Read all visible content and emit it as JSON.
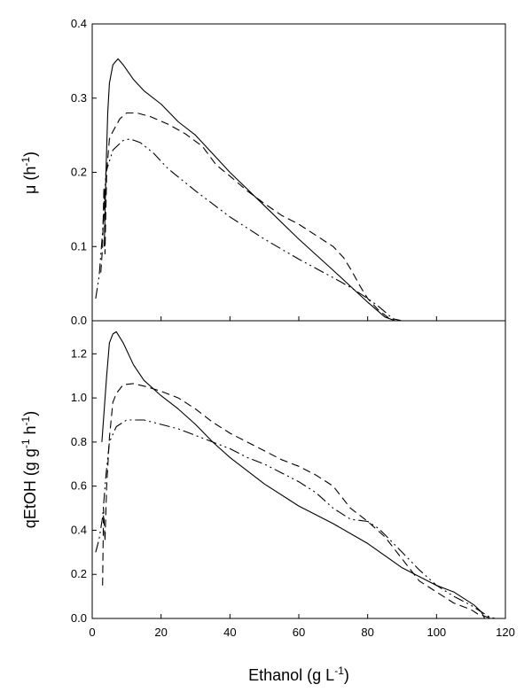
{
  "chart_data": [
    {
      "type": "line",
      "panel": "top",
      "ylabel": "μ (h-1)",
      "ylabel_parts": {
        "base": "μ (h",
        "sup": "-1",
        "close": ")"
      },
      "xlim": [
        0,
        120
      ],
      "ylim": [
        0,
        0.4
      ],
      "x_ticks": [],
      "y_ticks": [
        "0.0",
        "0.1",
        "0.2",
        "0.3",
        "0.4"
      ],
      "y_tick_values": [
        0,
        0.1,
        0.2,
        0.3,
        0.4
      ],
      "grid": false,
      "series": [
        {
          "style": "solid",
          "points": [
            [
              3.5,
              0.1
            ],
            [
              4,
              0.2
            ],
            [
              4.5,
              0.28
            ],
            [
              5,
              0.32
            ],
            [
              6,
              0.345
            ],
            [
              7.5,
              0.353
            ],
            [
              9,
              0.345
            ],
            [
              12,
              0.325
            ],
            [
              15,
              0.31
            ],
            [
              20,
              0.292
            ],
            [
              25,
              0.268
            ],
            [
              30,
              0.25
            ],
            [
              40,
              0.2
            ],
            [
              50,
              0.155
            ],
            [
              60,
              0.11
            ],
            [
              70,
              0.068
            ],
            [
              80,
              0.025
            ],
            [
              85,
              0.005
            ],
            [
              88,
              0
            ],
            [
              95,
              0
            ]
          ]
        },
        {
          "style": "dash",
          "points": [
            [
              2.5,
              0.065
            ],
            [
              3,
              0.1
            ],
            [
              3.4,
              0.18
            ],
            [
              3.7,
              0.09
            ],
            [
              4.2,
              0.2
            ],
            [
              5,
              0.245
            ],
            [
              6,
              0.255
            ],
            [
              8,
              0.272
            ],
            [
              10,
              0.28
            ],
            [
              13,
              0.28
            ],
            [
              17,
              0.275
            ],
            [
              22,
              0.265
            ],
            [
              27,
              0.252
            ],
            [
              32,
              0.235
            ],
            [
              36,
              0.21
            ],
            [
              40,
              0.195
            ],
            [
              45,
              0.175
            ],
            [
              50,
              0.158
            ],
            [
              55,
              0.142
            ],
            [
              60,
              0.13
            ],
            [
              65,
              0.115
            ],
            [
              70,
              0.1
            ],
            [
              73,
              0.085
            ],
            [
              75,
              0.07
            ],
            [
              78,
              0.045
            ],
            [
              80,
              0.03
            ],
            [
              83,
              0.015
            ],
            [
              86,
              0.004
            ],
            [
              90,
              0
            ],
            [
              95,
              0
            ]
          ]
        },
        {
          "style": "dash-dot-dot",
          "points": [
            [
              1,
              0.03
            ],
            [
              2,
              0.06
            ],
            [
              3,
              0.12
            ],
            [
              4,
              0.2
            ],
            [
              6,
              0.23
            ],
            [
              9,
              0.243
            ],
            [
              11,
              0.245
            ],
            [
              14,
              0.24
            ],
            [
              18,
              0.225
            ],
            [
              22,
              0.205
            ],
            [
              30,
              0.175
            ],
            [
              40,
              0.14
            ],
            [
              50,
              0.11
            ],
            [
              60,
              0.083
            ],
            [
              70,
              0.058
            ],
            [
              75,
              0.045
            ],
            [
              80,
              0.03
            ],
            [
              83,
              0.02
            ],
            [
              85,
              0.012
            ],
            [
              87,
              0.004
            ],
            [
              88,
              0
            ]
          ]
        }
      ]
    },
    {
      "type": "line",
      "panel": "bottom",
      "xlabel": "Ethanol (g L-1)",
      "xlabel_parts": {
        "base": "Ethanol (g L",
        "sup": "-1",
        "close": ")"
      },
      "ylabel": "qEtOH (g g-1 h-1)",
      "ylabel_parts": {
        "base": "qEtOH (g g",
        "sup1": "-1",
        "mid": " h",
        "sup2": "-1",
        "close": ")"
      },
      "xlim": [
        0,
        120
      ],
      "ylim": [
        0,
        1.35
      ],
      "x_ticks": [
        "0",
        "20",
        "40",
        "60",
        "80",
        "100",
        "120"
      ],
      "x_tick_values": [
        0,
        20,
        40,
        60,
        80,
        100,
        120
      ],
      "y_ticks": [
        "0.0",
        "0.2",
        "0.4",
        "0.6",
        "0.8",
        "1.0",
        "1.2"
      ],
      "y_tick_values": [
        0,
        0.2,
        0.4,
        0.6,
        0.8,
        1.0,
        1.2
      ],
      "grid": false,
      "series": [
        {
          "style": "solid",
          "points": [
            [
              2.8,
              0.8
            ],
            [
              3.5,
              0.95
            ],
            [
              4.2,
              1.1
            ],
            [
              5,
              1.25
            ],
            [
              6,
              1.29
            ],
            [
              7,
              1.3
            ],
            [
              9,
              1.25
            ],
            [
              12,
              1.15
            ],
            [
              15,
              1.08
            ],
            [
              20,
              1.01
            ],
            [
              25,
              0.95
            ],
            [
              30,
              0.88
            ],
            [
              35,
              0.8
            ],
            [
              40,
              0.73
            ],
            [
              50,
              0.61
            ],
            [
              60,
              0.51
            ],
            [
              70,
              0.43
            ],
            [
              80,
              0.34
            ],
            [
              90,
              0.23
            ],
            [
              100,
              0.15
            ],
            [
              105,
              0.12
            ],
            [
              108,
              0.09
            ],
            [
              111,
              0.06
            ],
            [
              113,
              0.03
            ],
            [
              114,
              0
            ]
          ]
        },
        {
          "style": "dash",
          "points": [
            [
              3,
              0.15
            ],
            [
              3.3,
              0.5
            ],
            [
              3.7,
              0.35
            ],
            [
              4.2,
              0.6
            ],
            [
              5,
              0.82
            ],
            [
              6,
              0.98
            ],
            [
              7,
              1.02
            ],
            [
              9,
              1.06
            ],
            [
              12,
              1.065
            ],
            [
              16,
              1.05
            ],
            [
              20,
              1.03
            ],
            [
              25,
              1.0
            ],
            [
              30,
              0.95
            ],
            [
              35,
              0.89
            ],
            [
              40,
              0.84
            ],
            [
              45,
              0.8
            ],
            [
              50,
              0.76
            ],
            [
              55,
              0.72
            ],
            [
              60,
              0.69
            ],
            [
              65,
              0.65
            ],
            [
              70,
              0.6
            ],
            [
              75,
              0.5
            ],
            [
              80,
              0.44
            ],
            [
              85,
              0.37
            ],
            [
              90,
              0.27
            ],
            [
              95,
              0.17
            ],
            [
              100,
              0.12
            ],
            [
              105,
              0.07
            ],
            [
              110,
              0.04
            ],
            [
              112,
              0.02
            ],
            [
              114,
              0.01
            ],
            [
              116,
              0
            ]
          ]
        },
        {
          "style": "dash-dot-dot",
          "points": [
            [
              1,
              0.3
            ],
            [
              2,
              0.36
            ],
            [
              3,
              0.46
            ],
            [
              4,
              0.65
            ],
            [
              5,
              0.8
            ],
            [
              7,
              0.87
            ],
            [
              10,
              0.9
            ],
            [
              15,
              0.9
            ],
            [
              20,
              0.88
            ],
            [
              25,
              0.86
            ],
            [
              30,
              0.83
            ],
            [
              35,
              0.8
            ],
            [
              40,
              0.77
            ],
            [
              45,
              0.73
            ],
            [
              50,
              0.7
            ],
            [
              55,
              0.66
            ],
            [
              60,
              0.62
            ],
            [
              65,
              0.57
            ],
            [
              70,
              0.5
            ],
            [
              75,
              0.45
            ],
            [
              80,
              0.44
            ],
            [
              83,
              0.41
            ],
            [
              85,
              0.38
            ],
            [
              90,
              0.3
            ],
            [
              95,
              0.22
            ],
            [
              100,
              0.15
            ],
            [
              105,
              0.1
            ],
            [
              110,
              0.06
            ],
            [
              113,
              0.03
            ],
            [
              115,
              0.01
            ],
            [
              117,
              0
            ]
          ]
        }
      ]
    }
  ]
}
